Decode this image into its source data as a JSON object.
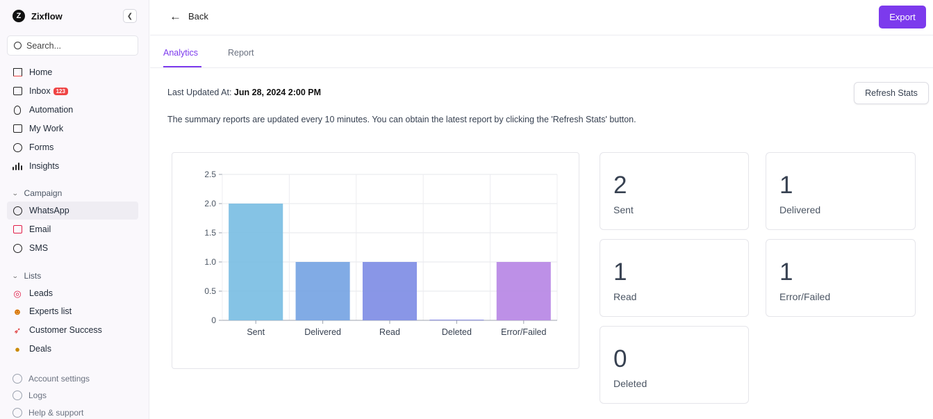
{
  "sidebar": {
    "brand": "Zixflow",
    "brand_letter": "Z",
    "collapse_icon": "chevron-left-icon",
    "search_placeholder": "Search...",
    "nav": [
      {
        "label": "Home",
        "icon": "home-icon"
      },
      {
        "label": "Inbox",
        "icon": "inbox-icon",
        "badge": "123"
      },
      {
        "label": "Automation",
        "icon": "bulb-icon"
      },
      {
        "label": "My Work",
        "icon": "checklist-icon"
      },
      {
        "label": "Forms",
        "icon": "form-icon"
      },
      {
        "label": "Insights",
        "icon": "bar-chart-icon"
      }
    ],
    "campaign_header": "Campaign",
    "campaign_items": [
      {
        "label": "WhatsApp",
        "icon": "whatsapp-icon",
        "active": true
      },
      {
        "label": "Email",
        "icon": "mail-icon"
      },
      {
        "label": "SMS",
        "icon": "chat-bubble-icon"
      }
    ],
    "lists_header": "Lists",
    "lists_items": [
      {
        "label": "Leads",
        "icon": "target-emoji-icon"
      },
      {
        "label": "Experts list",
        "icon": "nerd-face-emoji-icon"
      },
      {
        "label": "Customer Success",
        "icon": "rocket-emoji-icon"
      },
      {
        "label": "Deals",
        "icon": "money-bag-emoji-icon"
      }
    ],
    "footer": [
      {
        "label": "Account settings",
        "icon": "gear-icon"
      },
      {
        "label": "Logs",
        "icon": "clock-icon"
      },
      {
        "label": "Help & support",
        "icon": "help-icon"
      }
    ]
  },
  "header": {
    "back_label": "Back",
    "export_label": "Export",
    "accent_color": "#7c3aed"
  },
  "tabs": [
    {
      "label": "Analytics",
      "active": true
    },
    {
      "label": "Report",
      "active": false
    }
  ],
  "summary": {
    "updated_prefix": "Last Updated At:",
    "updated_value": "Jun 28, 2024 2:00 PM",
    "refresh_label": "Refresh Stats",
    "note": "The summary reports are updated every 10 minutes. You can obtain the latest report by clicking the 'Refresh Stats' button."
  },
  "chart_data": {
    "type": "bar",
    "categories": [
      "Sent",
      "Delivered",
      "Read",
      "Deleted",
      "Error/Failed"
    ],
    "values": [
      2,
      1,
      1,
      0,
      1
    ],
    "colors": [
      "#7ec0e4",
      "#7aa6e4",
      "#8390e6",
      "#8a8ce6",
      "#b98ae6"
    ],
    "ylim": [
      0,
      2.5
    ],
    "yticks": [
      "0",
      "0.5",
      "1.0",
      "1.5",
      "2.0",
      "2.5"
    ],
    "grid": true,
    "title": "",
    "xlabel": "",
    "ylabel": ""
  },
  "stats": [
    {
      "value": "2",
      "label": "Sent"
    },
    {
      "value": "1",
      "label": "Delivered"
    },
    {
      "value": "1",
      "label": "Read"
    },
    {
      "value": "1",
      "label": "Error/Failed"
    },
    {
      "value": "0",
      "label": "Deleted"
    }
  ]
}
